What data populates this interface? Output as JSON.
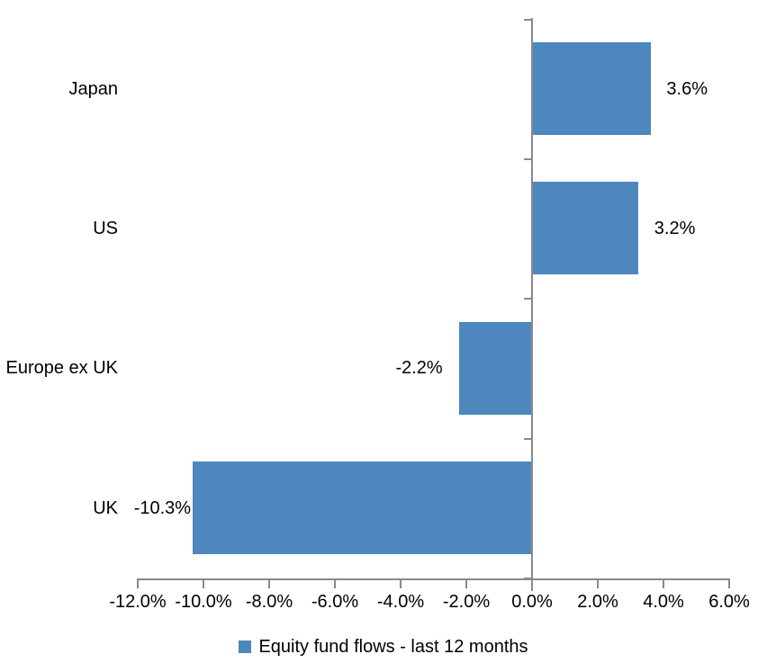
{
  "chart_data": {
    "type": "bar",
    "orientation": "horizontal",
    "title": "",
    "xlabel": "",
    "ylabel": "",
    "categories": [
      "Japan",
      "US",
      "Europe ex UK",
      "UK"
    ],
    "series": [
      {
        "name": "Equity fund flows - last 12 months",
        "values": [
          3.6,
          3.2,
          -2.2,
          -10.3
        ],
        "data_labels": [
          "3.6%",
          "3.2%",
          "-2.2%",
          "-10.3%"
        ]
      }
    ],
    "xlim": [
      -12,
      6
    ],
    "x_tick_values": [
      -12,
      -10,
      -8,
      -6,
      -4,
      -2,
      0,
      2,
      4,
      6
    ],
    "x_tick_labels": [
      "-12.0%",
      "-10.0%",
      "-8.0%",
      "-6.0%",
      "-4.0%",
      "-2.0%",
      "0.0%",
      "2.0%",
      "4.0%",
      "6.0%"
    ],
    "grid": false,
    "legend_position": "bottom",
    "legend_label": "Equity fund flows - last 12 months",
    "bar_color": "#4E86BE",
    "axis_color": "#8A8A8A",
    "text_color": "#000000"
  }
}
